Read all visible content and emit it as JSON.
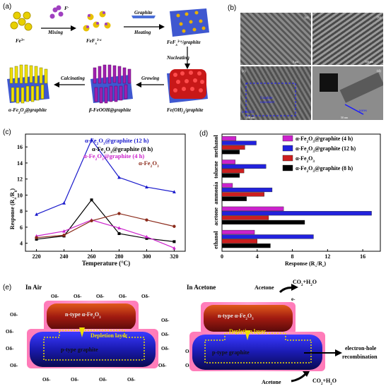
{
  "panel_a": {
    "label": "(a)",
    "species": {
      "fe3": "Fe3+",
      "f_minus": "F-",
      "fef": "FeFx3-x",
      "fef_graphite": "FeFx3-x/graphite",
      "feoh": "Fe(OH)3/graphite",
      "feooh": "β-FeOOH@graphite",
      "fe2o3": "α-Fe2O3@graphite"
    },
    "steps": {
      "mixing": "Mixing",
      "graphite": "Graphite",
      "heating": "Heating",
      "nucleating": "Nucleating",
      "growing": "Growing",
      "calcinating": "Calcinating"
    }
  },
  "panel_b": {
    "label": "(b)",
    "sub": [
      "(a)",
      "(b)",
      "(c)",
      "(d)"
    ],
    "annot": [
      "Graphite",
      "nanosheet",
      "α-Fe2O3",
      "pores"
    ],
    "scales": [
      "5 μm",
      "500 nm",
      "500 nm",
      "50 nm"
    ]
  },
  "panel_c": {
    "label": "(c)",
    "legend": [
      "α-Fe2O3@graphite (12 h)",
      "α-Fe2O3@graphite (8 h)",
      "α-Fe2O3@graphite (4 h)",
      "α-Fe2O3"
    ],
    "colors": [
      "#1a1acc",
      "#000000",
      "#cc22cc",
      "#8b2a1a"
    ]
  },
  "panel_d": {
    "label": "(d)",
    "legend": [
      "α-Fe2O3@graphite (4 h)",
      "α-Fe2O3@graphite (12 h)",
      "α-Fe2O3",
      "α-Fe2O3@graphite (8 h)"
    ],
    "colors": [
      "#cc22cc",
      "#2222dd",
      "#cc1f1f",
      "#000000"
    ]
  },
  "panel_e": {
    "label": "(e)",
    "air_title": "In Air",
    "acetone_title": "In Acetone",
    "n_type": "n-type α-Fe2O3",
    "p_type": "p-type graphite",
    "depletion": "Depletion layer",
    "ion": "Oδ-",
    "acetone": "Acetone",
    "co2": "CO2+H2O",
    "electron": "e-",
    "recomb_1": "electron-hole",
    "recomb_2": "recombination"
  },
  "chart_data": [
    {
      "type": "line",
      "xlabel": "Temperature (°C)",
      "ylabel": "Response (Ra/Rg)",
      "x": [
        220,
        240,
        260,
        280,
        300,
        320
      ],
      "xticks": [
        "220",
        "240",
        "260",
        "280",
        "300",
        "320"
      ],
      "yticks": [
        "4",
        "6",
        "8",
        "10",
        "12",
        "14",
        "16"
      ],
      "xlim": [
        212,
        328
      ],
      "ylim": [
        3,
        17.6
      ],
      "series": [
        {
          "name": "α-Fe2O3@graphite (12 h)",
          "values": [
            7.6,
            9.0,
            16.9,
            12.2,
            11.0,
            10.4
          ]
        },
        {
          "name": "α-Fe2O3@graphite (8 h)",
          "values": [
            4.5,
            4.9,
            9.4,
            5.2,
            4.6,
            4.2
          ]
        },
        {
          "name": "α-Fe2O3@graphite (4 h)",
          "values": [
            4.9,
            5.5,
            6.9,
            5.9,
            4.8,
            3.4
          ]
        },
        {
          "name": "α-Fe2O3",
          "values": [
            4.7,
            5.0,
            6.8,
            7.7,
            6.9,
            6.1
          ]
        }
      ]
    },
    {
      "type": "bar",
      "orientation": "horizontal",
      "categories": [
        "methanol",
        "toluene",
        "ammonia",
        "acetone",
        "ethanol"
      ],
      "xlabel": "Response (Ra/Rg)",
      "xticks": [
        "0",
        "4",
        "8",
        "12",
        "16"
      ],
      "xlim": [
        0,
        18
      ],
      "series": [
        {
          "name": "α-Fe2O3@graphite (4 h)",
          "values": [
            1.6,
            1.5,
            1.2,
            7.0,
            3.7
          ]
        },
        {
          "name": "α-Fe2O3@graphite (12 h)",
          "values": [
            3.9,
            5.0,
            5.7,
            17.0,
            10.4
          ]
        },
        {
          "name": "α-Fe2O3",
          "values": [
            2.6,
            2.5,
            4.8,
            5.3,
            4.0
          ]
        },
        {
          "name": "α-Fe2O3@graphite (8 h)",
          "values": [
            2.0,
            2.0,
            2.8,
            9.4,
            5.5
          ]
        }
      ]
    }
  ]
}
